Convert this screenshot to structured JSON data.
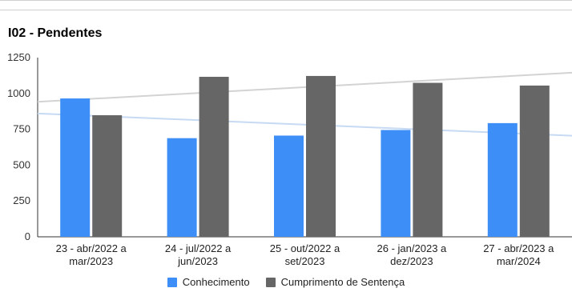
{
  "chart_data": {
    "type": "bar",
    "title": "I02 - Pendentes",
    "categories": [
      [
        "23 - abr/2022 a",
        "mar/2023"
      ],
      [
        "24 - jul/2022 a",
        "jun/2023"
      ],
      [
        "25 - out/2022 a",
        "set/2023"
      ],
      [
        "26 - jan/2023 a",
        "dez/2023"
      ],
      [
        "27 - abr/2023 a",
        "mar/2024"
      ]
    ],
    "series": [
      {
        "name": "Conhecimento",
        "color": "#3d8ff7",
        "values": [
          965,
          688,
          706,
          745,
          793
        ]
      },
      {
        "name": "Cumprimento de Sentença",
        "color": "#666666",
        "values": [
          848,
          1116,
          1122,
          1074,
          1055
        ]
      }
    ],
    "trendlines": [
      {
        "series": "Conhecimento",
        "color": "#c7daf3",
        "start": 860,
        "end": 705
      },
      {
        "series": "Cumprimento de Sentença",
        "color": "#d3d3d3",
        "start": 942,
        "end": 1145
      }
    ],
    "yticks": [
      "0",
      "250",
      "500",
      "750",
      "1000",
      "1250"
    ],
    "ylim": [
      0,
      1250
    ],
    "xlabel": "",
    "ylabel": "",
    "grid": false,
    "legend_position": "bottom"
  }
}
